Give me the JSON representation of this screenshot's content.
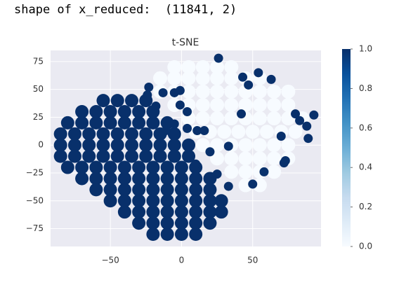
{
  "output_text": "shape of x_reduced:  (11841, 2)",
  "chart_data": {
    "type": "scatter",
    "title": "t-SNE",
    "xlim": [
      -92,
      98
    ],
    "ylim": [
      -91,
      85
    ],
    "xticks": [
      {
        "value": -50,
        "label": "−50"
      },
      0,
      50
    ],
    "yticks": [
      75,
      50,
      25,
      0,
      {
        "value": -25,
        "label": "−25"
      },
      {
        "value": -50,
        "label": "−50"
      },
      {
        "value": -75,
        "label": "−75"
      }
    ],
    "grid": true,
    "colormap": [
      "#f7fbff",
      "#deebf7",
      "#c6dbef",
      "#9ecae1",
      "#6baed6",
      "#4292c6",
      "#2171b5",
      "#08519c",
      "#08306b"
    ],
    "clim": [
      0,
      1
    ],
    "cticks": [
      {
        "value": 0,
        "label": "0.0"
      },
      {
        "value": 0.2,
        "label": "0.2"
      },
      {
        "value": 0.4,
        "label": "0.4"
      },
      {
        "value": 0.6,
        "label": "0.6"
      },
      {
        "value": 0.8,
        "label": "0.8"
      },
      {
        "value": 1,
        "label": "1.0"
      }
    ],
    "series": [
      {
        "c": 0,
        "x": [
          -5,
          5,
          15,
          25,
          35,
          -15,
          -5,
          5,
          15,
          25,
          35,
          45,
          55,
          -15,
          -5,
          5,
          15,
          25,
          35,
          45,
          55,
          65,
          75,
          -5,
          5,
          15,
          25,
          35,
          45,
          55,
          65,
          75,
          5,
          15,
          25,
          35,
          45,
          55,
          65,
          75,
          85,
          10,
          20,
          30,
          40,
          50,
          60,
          70,
          80,
          15,
          25,
          35,
          45,
          55,
          65,
          75,
          25,
          35,
          45,
          55,
          65,
          75,
          35,
          45,
          55,
          65,
          45,
          55
        ],
        "y": [
          70,
          70,
          70,
          70,
          70,
          60,
          60,
          60,
          60,
          60,
          60,
          60,
          60,
          48,
          48,
          48,
          48,
          48,
          48,
          48,
          48,
          48,
          48,
          36,
          36,
          36,
          36,
          36,
          36,
          36,
          36,
          36,
          24,
          24,
          24,
          24,
          24,
          24,
          24,
          24,
          24,
          12,
          12,
          12,
          12,
          12,
          12,
          12,
          12,
          0,
          0,
          0,
          0,
          0,
          0,
          0,
          -12,
          -12,
          -12,
          -12,
          -12,
          -12,
          -24,
          -24,
          -24,
          -24,
          -36,
          -36
        ]
      },
      {
        "c": 1,
        "x": [
          -55,
          -45,
          -35,
          -25,
          -70,
          -60,
          -50,
          -40,
          -30,
          -20,
          -80,
          -70,
          -60,
          -50,
          -40,
          -30,
          -20,
          -10,
          -85,
          -75,
          -65,
          -55,
          -45,
          -35,
          -25,
          -15,
          -5,
          -85,
          -75,
          -65,
          -55,
          -45,
          -35,
          -25,
          -15,
          -5,
          5,
          -85,
          -75,
          -65,
          -55,
          -45,
          -35,
          -25,
          -15,
          -5,
          5,
          -80,
          -70,
          -60,
          -50,
          -40,
          -30,
          -20,
          -10,
          0,
          10,
          -70,
          -60,
          -50,
          -40,
          -30,
          -20,
          -10,
          0,
          10,
          20,
          -60,
          -50,
          -40,
          -30,
          -20,
          -10,
          0,
          10,
          20,
          -50,
          -40,
          -30,
          -20,
          -10,
          0,
          10,
          20,
          28,
          -40,
          -30,
          -20,
          -10,
          0,
          10,
          20,
          28,
          -30,
          -20,
          -10,
          0,
          10,
          20,
          -20,
          -10,
          0,
          10
        ],
        "y": [
          40,
          40,
          40,
          40,
          30,
          30,
          30,
          30,
          30,
          30,
          20,
          20,
          20,
          20,
          20,
          20,
          20,
          20,
          10,
          10,
          10,
          10,
          10,
          10,
          10,
          10,
          10,
          0,
          0,
          0,
          0,
          0,
          0,
          0,
          0,
          0,
          0,
          -10,
          -10,
          -10,
          -10,
          -10,
          -10,
          -10,
          -10,
          -10,
          -10,
          -20,
          -20,
          -20,
          -20,
          -20,
          -20,
          -20,
          -20,
          -20,
          -20,
          -30,
          -30,
          -30,
          -30,
          -30,
          -30,
          -30,
          -30,
          -30,
          -30,
          -40,
          -40,
          -40,
          -40,
          -40,
          -40,
          -40,
          -40,
          -40,
          -50,
          -50,
          -50,
          -50,
          -50,
          -50,
          -50,
          -50,
          -50,
          -60,
          -60,
          -60,
          -60,
          -60,
          -60,
          -60,
          -60,
          -70,
          -70,
          -70,
          -70,
          -70,
          -70,
          -80,
          -80,
          -80,
          -80
        ]
      },
      {
        "c": 1,
        "x": [
          26,
          43,
          47,
          54,
          63,
          -23,
          -24,
          -13,
          -18,
          -5,
          -1,
          -1,
          4,
          42,
          -11,
          -5,
          4,
          16,
          20,
          11,
          33,
          80,
          83,
          88,
          93,
          70,
          89,
          73,
          72,
          58,
          50,
          33,
          25,
          10
        ],
        "y": [
          78,
          61,
          54,
          65,
          59,
          52,
          45,
          47,
          35,
          47,
          49,
          36,
          30,
          28,
          13,
          19,
          15,
          13,
          -6,
          13,
          -1,
          28,
          22,
          17,
          27,
          8,
          6,
          -14,
          -16,
          -24,
          -35,
          -37,
          -26,
          -17
        ]
      }
    ]
  }
}
